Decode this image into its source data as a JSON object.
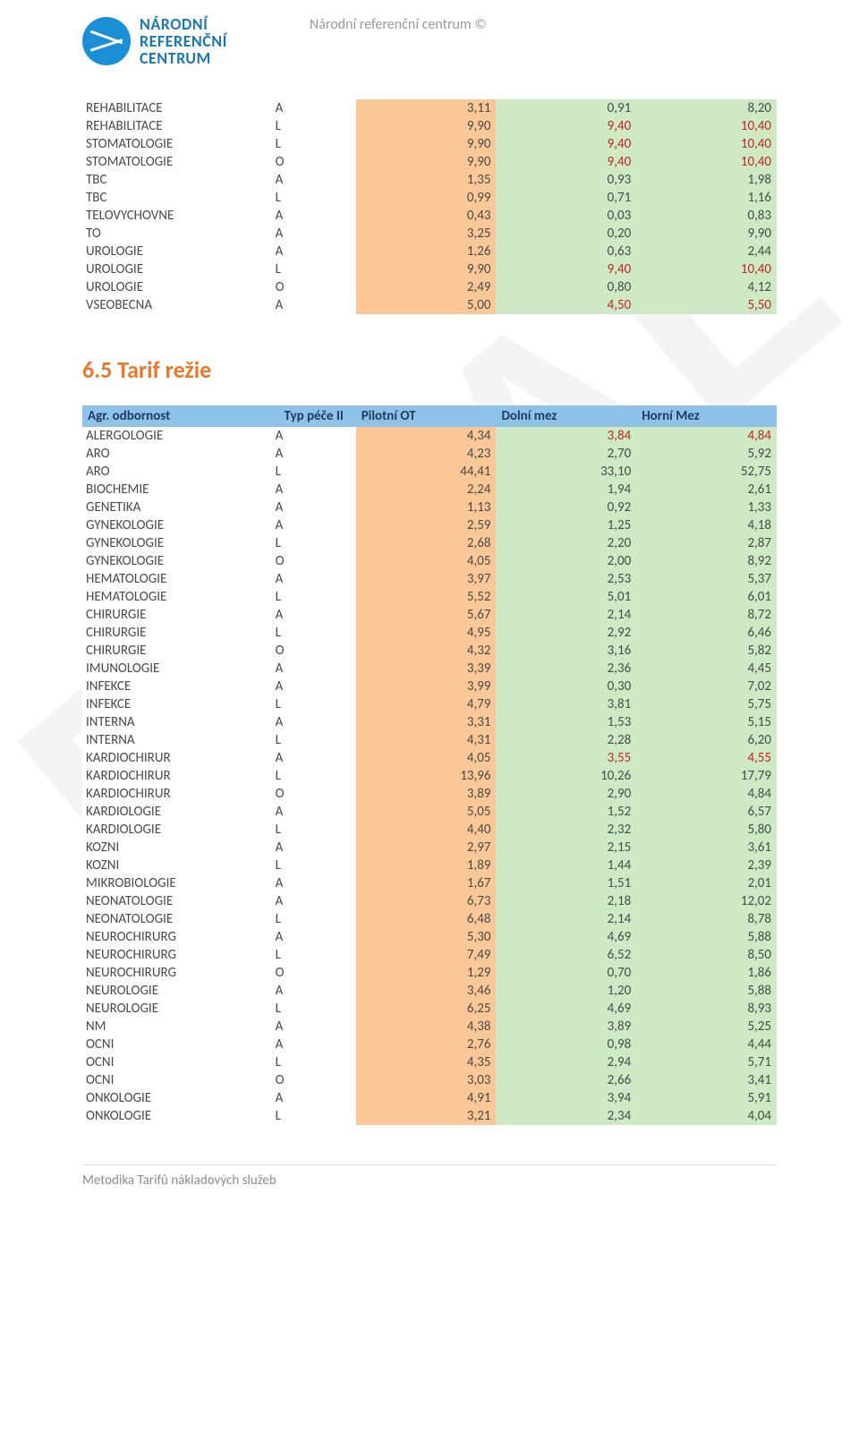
{
  "header": {
    "copyright": "Národní referenční centrum ©",
    "logo_lines": [
      "NÁRODNÍ",
      "REFERENČNÍ",
      "CENTRUM"
    ]
  },
  "watermark": "FINAL",
  "table1": {
    "colors": {
      "col_odbornost_bg": "#ffffff",
      "col_typ_bg": "#ffffff",
      "col_pilotni_bg": "#f9c896",
      "col_dolni_bg": "#cdeac5",
      "col_horni_bg": "#cdeac5",
      "highlight_text": "#c52424"
    },
    "rows": [
      {
        "name": "REHABILITACE",
        "typ": "A",
        "v1": "3,11",
        "v2": "0,91",
        "v3": "8,20"
      },
      {
        "name": "REHABILITACE",
        "typ": "L",
        "v1": "9,90",
        "v2": "9,40",
        "v3": "10,40",
        "hl": true
      },
      {
        "name": "STOMATOLOGIE",
        "typ": "L",
        "v1": "9,90",
        "v2": "9,40",
        "v3": "10,40",
        "hl": true
      },
      {
        "name": "STOMATOLOGIE",
        "typ": "O",
        "v1": "9,90",
        "v2": "9,40",
        "v3": "10,40",
        "hl": true
      },
      {
        "name": "TBC",
        "typ": "A",
        "v1": "1,35",
        "v2": "0,93",
        "v3": "1,98"
      },
      {
        "name": "TBC",
        "typ": "L",
        "v1": "0,99",
        "v2": "0,71",
        "v3": "1,16"
      },
      {
        "name": "TELOVYCHOVNE",
        "typ": "A",
        "v1": "0,43",
        "v2": "0,03",
        "v3": "0,83"
      },
      {
        "name": "TO",
        "typ": "A",
        "v1": "3,25",
        "v2": "0,20",
        "v3": "9,90"
      },
      {
        "name": "UROLOGIE",
        "typ": "A",
        "v1": "1,26",
        "v2": "0,63",
        "v3": "2,44"
      },
      {
        "name": "UROLOGIE",
        "typ": "L",
        "v1": "9,90",
        "v2": "9,40",
        "v3": "10,40",
        "hl": true
      },
      {
        "name": "UROLOGIE",
        "typ": "O",
        "v1": "2,49",
        "v2": "0,80",
        "v3": "4,12"
      },
      {
        "name": "VSEOBECNA",
        "typ": "A",
        "v1": "5,00",
        "v2": "4,50",
        "v3": "5,50",
        "hl": true
      }
    ]
  },
  "section_title": "6.5  Tarif režie",
  "table2": {
    "header_bg": "#8ec2e8",
    "header_text": "#1f3b5e",
    "colors": {
      "col_odbornost_bg": "#ffffff",
      "col_typ_bg": "#ffffff",
      "col_pilotni_bg": "#f9c896",
      "col_dolni_bg": "#cdeac5",
      "col_horni_bg": "#cdeac5",
      "highlight_text": "#c52424"
    },
    "columns": [
      "Agr. odbornost",
      "Typ péče II",
      "Pilotní OT",
      "Dolní mez",
      "Horní Mez"
    ],
    "rows": [
      {
        "name": "ALERGOLOGIE",
        "typ": "A",
        "v1": "4,34",
        "v2": "3,84",
        "v3": "4,84",
        "hl": true
      },
      {
        "name": "ARO",
        "typ": "A",
        "v1": "4,23",
        "v2": "2,70",
        "v3": "5,92"
      },
      {
        "name": "ARO",
        "typ": "L",
        "v1": "44,41",
        "v2": "33,10",
        "v3": "52,75"
      },
      {
        "name": "BIOCHEMIE",
        "typ": "A",
        "v1": "2,24",
        "v2": "1,94",
        "v3": "2,61"
      },
      {
        "name": "GENETIKA",
        "typ": "A",
        "v1": "1,13",
        "v2": "0,92",
        "v3": "1,33"
      },
      {
        "name": "GYNEKOLOGIE",
        "typ": "A",
        "v1": "2,59",
        "v2": "1,25",
        "v3": "4,18"
      },
      {
        "name": "GYNEKOLOGIE",
        "typ": "L",
        "v1": "2,68",
        "v2": "2,20",
        "v3": "2,87"
      },
      {
        "name": "GYNEKOLOGIE",
        "typ": "O",
        "v1": "4,05",
        "v2": "2,00",
        "v3": "8,92"
      },
      {
        "name": "HEMATOLOGIE",
        "typ": "A",
        "v1": "3,97",
        "v2": "2,53",
        "v3": "5,37"
      },
      {
        "name": "HEMATOLOGIE",
        "typ": "L",
        "v1": "5,52",
        "v2": "5,01",
        "v3": "6,01"
      },
      {
        "name": "CHIRURGIE",
        "typ": "A",
        "v1": "5,67",
        "v2": "2,14",
        "v3": "8,72"
      },
      {
        "name": "CHIRURGIE",
        "typ": "L",
        "v1": "4,95",
        "v2": "2,92",
        "v3": "6,46"
      },
      {
        "name": "CHIRURGIE",
        "typ": "O",
        "v1": "4,32",
        "v2": "3,16",
        "v3": "5,82"
      },
      {
        "name": "IMUNOLOGIE",
        "typ": "A",
        "v1": "3,39",
        "v2": "2,36",
        "v3": "4,45"
      },
      {
        "name": "INFEKCE",
        "typ": "A",
        "v1": "3,99",
        "v2": "0,30",
        "v3": "7,02"
      },
      {
        "name": "INFEKCE",
        "typ": "L",
        "v1": "4,79",
        "v2": "3,81",
        "v3": "5,75"
      },
      {
        "name": "INTERNA",
        "typ": "A",
        "v1": "3,31",
        "v2": "1,53",
        "v3": "5,15"
      },
      {
        "name": "INTERNA",
        "typ": "L",
        "v1": "4,31",
        "v2": "2,28",
        "v3": "6,20"
      },
      {
        "name": "KARDIOCHIRUR",
        "typ": "A",
        "v1": "4,05",
        "v2": "3,55",
        "v3": "4,55",
        "hl": true
      },
      {
        "name": "KARDIOCHIRUR",
        "typ": "L",
        "v1": "13,96",
        "v2": "10,26",
        "v3": "17,79"
      },
      {
        "name": "KARDIOCHIRUR",
        "typ": "O",
        "v1": "3,89",
        "v2": "2,90",
        "v3": "4,84"
      },
      {
        "name": "KARDIOLOGIE",
        "typ": "A",
        "v1": "5,05",
        "v2": "1,52",
        "v3": "6,57"
      },
      {
        "name": "KARDIOLOGIE",
        "typ": "L",
        "v1": "4,40",
        "v2": "2,32",
        "v3": "5,80"
      },
      {
        "name": "KOZNI",
        "typ": "A",
        "v1": "2,97",
        "v2": "2,15",
        "v3": "3,61"
      },
      {
        "name": "KOZNI",
        "typ": "L",
        "v1": "1,89",
        "v2": "1,44",
        "v3": "2,39"
      },
      {
        "name": "MIKROBIOLOGIE",
        "typ": "A",
        "v1": "1,67",
        "v2": "1,51",
        "v3": "2,01"
      },
      {
        "name": "NEONATOLOGIE",
        "typ": "A",
        "v1": "6,73",
        "v2": "2,18",
        "v3": "12,02"
      },
      {
        "name": "NEONATOLOGIE",
        "typ": "L",
        "v1": "6,48",
        "v2": "2,14",
        "v3": "8,78"
      },
      {
        "name": "NEUROCHIRURG",
        "typ": "A",
        "v1": "5,30",
        "v2": "4,69",
        "v3": "5,88"
      },
      {
        "name": "NEUROCHIRURG",
        "typ": "L",
        "v1": "7,49",
        "v2": "6,52",
        "v3": "8,50"
      },
      {
        "name": "NEUROCHIRURG",
        "typ": "O",
        "v1": "1,29",
        "v2": "0,70",
        "v3": "1,86"
      },
      {
        "name": "NEUROLOGIE",
        "typ": "A",
        "v1": "3,46",
        "v2": "1,20",
        "v3": "5,88"
      },
      {
        "name": "NEUROLOGIE",
        "typ": "L",
        "v1": "6,25",
        "v2": "4,69",
        "v3": "8,93"
      },
      {
        "name": "NM",
        "typ": "A",
        "v1": "4,38",
        "v2": "3,89",
        "v3": "5,25"
      },
      {
        "name": "OCNI",
        "typ": "A",
        "v1": "2,76",
        "v2": "0,98",
        "v3": "4,44"
      },
      {
        "name": "OCNI",
        "typ": "L",
        "v1": "4,35",
        "v2": "2,94",
        "v3": "5,71"
      },
      {
        "name": "OCNI",
        "typ": "O",
        "v1": "3,03",
        "v2": "2,66",
        "v3": "3,41"
      },
      {
        "name": "ONKOLOGIE",
        "typ": "A",
        "v1": "4,91",
        "v2": "3,94",
        "v3": "5,91"
      },
      {
        "name": "ONKOLOGIE",
        "typ": "L",
        "v1": "3,21",
        "v2": "2,34",
        "v3": "4,04"
      }
    ]
  },
  "footer": "Metodika Tarifů nákladových služeb"
}
